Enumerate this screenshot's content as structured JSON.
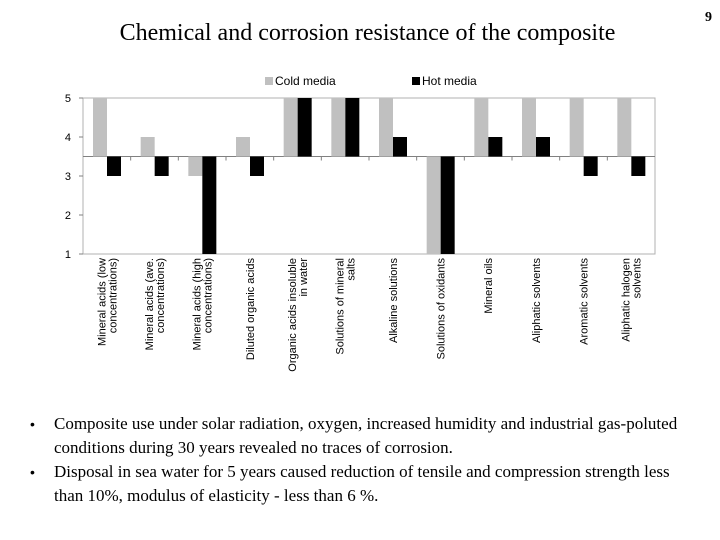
{
  "slide": {
    "title": "Chemical and corrosion resistance of the composite",
    "page_number": "9",
    "bullets": [
      "Composite use under solar radiation, oxygen, increased humidity and industrial gas-poluted conditions during 30 years revealed no traces of corrosion.",
      "Disposal in sea water for 5 years caused reduction of tensile and compression strength less than 10%, modulus of elasticity - less than 6 %."
    ]
  },
  "chart_data": {
    "type": "bar",
    "title": "",
    "xlabel": "",
    "ylabel": "",
    "ylim": [
      1,
      5
    ],
    "yticks": [
      "1",
      "2",
      "3",
      "4",
      "5"
    ],
    "baseline": 3.5,
    "grid": false,
    "legend_position": "top",
    "categories": [
      [
        "Mineral acids (low",
        "concentrations)"
      ],
      [
        "Mineral acids (ave.",
        "concentrations)"
      ],
      [
        "Mineral acids (high",
        "concentrations)"
      ],
      [
        "Diluted organic acids"
      ],
      [
        "Organic acids insoluble",
        "in water"
      ],
      [
        "Solutions of mineral",
        "salts"
      ],
      [
        "Alkaline solutions"
      ],
      [
        "Solutions of oxidants"
      ],
      [
        "Mineral oils"
      ],
      [
        "Aliphatic solvents"
      ],
      [
        "Aromatic solvents"
      ],
      [
        "Aliphatic halogen",
        "solvents"
      ]
    ],
    "series": [
      {
        "name": "Cold media",
        "color": "#c0c0c0",
        "values": [
          5,
          4,
          3,
          4,
          5,
          5,
          5,
          1,
          5,
          5,
          5,
          5
        ]
      },
      {
        "name": "Hot media",
        "color": "#000000",
        "values": [
          3,
          3,
          1,
          3,
          5,
          5,
          4,
          1,
          4,
          4,
          3,
          3
        ]
      }
    ]
  }
}
